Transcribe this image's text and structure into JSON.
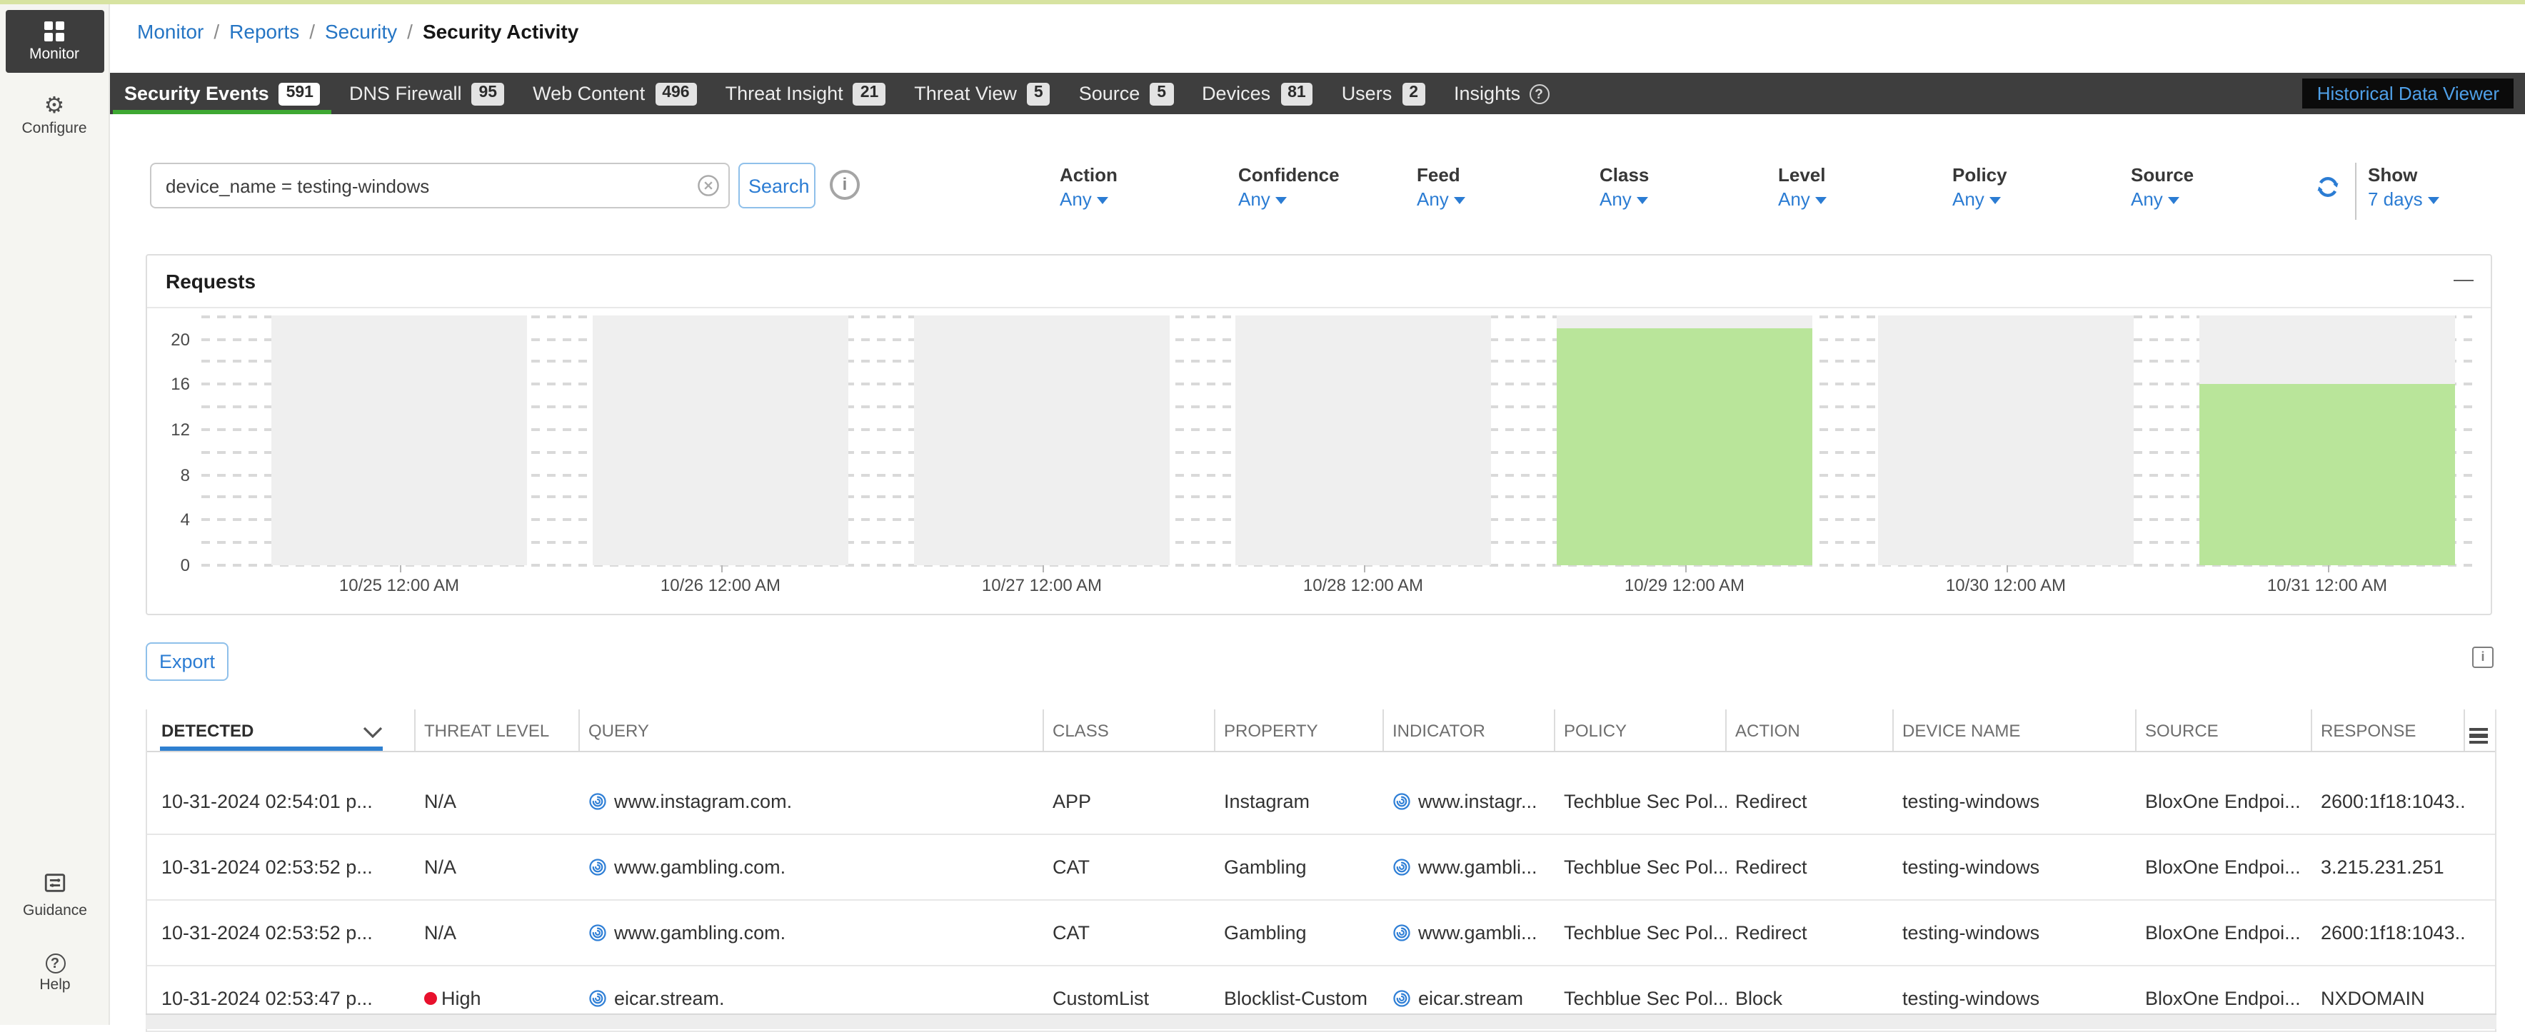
{
  "icons": {
    "help_glyph": "?",
    "info_glyph": "i",
    "collapse_glyph": "—",
    "gear_glyph": "⚙",
    "breadcrumb_separator": "/"
  },
  "colors": {
    "link_blue": "#2b7cd3",
    "tab_bar": "#3e3e3e",
    "active_tab_underline": "#3ea832",
    "bar_green": "#b9e59a",
    "band_gray": "#efefef",
    "threat_high_red": "#e8112d",
    "historical_link": "#4fa0e8"
  },
  "sidebar": {
    "items": [
      {
        "label": "Monitor",
        "active": true
      },
      {
        "label": "Configure"
      }
    ],
    "bottom_items": [
      {
        "label": "Guidance"
      },
      {
        "label": "Help"
      }
    ]
  },
  "breadcrumb": {
    "links": [
      "Monitor",
      "Reports",
      "Security"
    ],
    "current": "Security Activity"
  },
  "tabbar": {
    "tabs": [
      {
        "label": "Security Events",
        "count": "591",
        "active": true
      },
      {
        "label": "DNS Firewall",
        "count": "95"
      },
      {
        "label": "Web Content",
        "count": "496"
      },
      {
        "label": "Threat Insight",
        "count": "21"
      },
      {
        "label": "Threat View",
        "count": "5"
      },
      {
        "label": "Source",
        "count": "5"
      },
      {
        "label": "Devices",
        "count": "81"
      },
      {
        "label": "Users",
        "count": "2"
      },
      {
        "label": "Insights",
        "help": true
      }
    ],
    "historical_button": "Historical Data Viewer"
  },
  "filters": {
    "search": {
      "value": "device_name = testing-windows",
      "button": "Search"
    },
    "dropdowns": [
      {
        "label": "Action",
        "value": "Any"
      },
      {
        "label": "Confidence",
        "value": "Any"
      },
      {
        "label": "Feed",
        "value": "Any"
      },
      {
        "label": "Class",
        "value": "Any"
      },
      {
        "label": "Level",
        "value": "Any"
      },
      {
        "label": "Policy",
        "value": "Any"
      },
      {
        "label": "Source",
        "value": "Any"
      }
    ],
    "show": {
      "label": "Show",
      "value": "7 days"
    }
  },
  "requests_panel": {
    "title": "Requests"
  },
  "chart_data": {
    "type": "bar",
    "title": "Requests",
    "categories": [
      "10/25 12:00 AM",
      "10/26 12:00 AM",
      "10/27 12:00 AM",
      "10/28 12:00 AM",
      "10/29 12:00 AM",
      "10/30 12:00 AM",
      "10/31 12:00 AM"
    ],
    "values": [
      0,
      0,
      0,
      0,
      21,
      0,
      16
    ],
    "xlabel": "",
    "ylabel": "",
    "ylim": [
      0,
      20
    ],
    "yticks": [
      0,
      4,
      8,
      12,
      16,
      20
    ],
    "grid": "dashed-horizontal-every-2",
    "legend": "none",
    "bar_color": "#b9e59a",
    "background_band_color": "#efefef"
  },
  "table": {
    "export_button": "Export",
    "sorted_column": "DETECTED",
    "sort_direction": "desc",
    "columns": [
      "DETECTED",
      "THREAT LEVEL",
      "QUERY",
      "CLASS",
      "PROPERTY",
      "INDICATOR",
      "POLICY",
      "ACTION",
      "DEVICE NAME",
      "SOURCE",
      "RESPONSE"
    ],
    "rows": [
      {
        "detected": "10-31-2024 02:54:01 p...",
        "threat_level": "N/A",
        "high": false,
        "query": "www.instagram.com.",
        "class": "APP",
        "property": "Instagram",
        "indicator": "www.instagr...",
        "policy": "Techblue Sec Pol...",
        "action": "Redirect",
        "device_name": "testing-windows",
        "source": "BloxOne Endpoi...",
        "response": "2600:1f18:1043..."
      },
      {
        "detected": "10-31-2024 02:53:52 p...",
        "threat_level": "N/A",
        "high": false,
        "query": "www.gambling.com.",
        "class": "CAT",
        "property": "Gambling",
        "indicator": "www.gambli...",
        "policy": "Techblue Sec Pol...",
        "action": "Redirect",
        "device_name": "testing-windows",
        "source": "BloxOne Endpoi...",
        "response": "3.215.231.251"
      },
      {
        "detected": "10-31-2024 02:53:52 p...",
        "threat_level": "N/A",
        "high": false,
        "query": "www.gambling.com.",
        "class": "CAT",
        "property": "Gambling",
        "indicator": "www.gambli...",
        "policy": "Techblue Sec Pol...",
        "action": "Redirect",
        "device_name": "testing-windows",
        "source": "BloxOne Endpoi...",
        "response": "2600:1f18:1043..."
      },
      {
        "detected": "10-31-2024 02:53:47 p...",
        "threat_level": "High",
        "high": true,
        "query": "eicar.stream.",
        "class": "CustomList",
        "property": "Blocklist-Custom",
        "indicator": "eicar.stream",
        "policy": "Techblue Sec Pol...",
        "action": "Block",
        "device_name": "testing-windows",
        "source": "BloxOne Endpoi...",
        "response": "NXDOMAIN"
      }
    ]
  }
}
